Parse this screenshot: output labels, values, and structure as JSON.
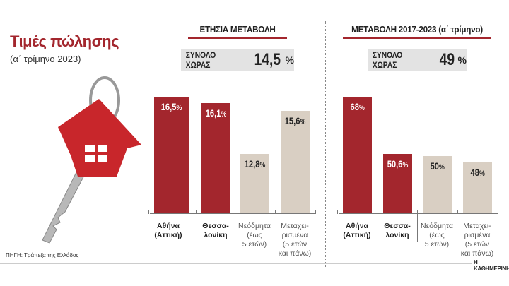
{
  "title": "Τιμές πώλησης",
  "subtitle": "(α΄ τρίμηνο 2023)",
  "source": "ΠΗΓΗ: Τράπεζα της Ελλάδος",
  "brand": "Η ΚΑΘΗΜΕΡΙΝΗ",
  "colors": {
    "dark": "#a3262d",
    "light": "#d9cfc3"
  },
  "chart_data": [
    {
      "type": "bar",
      "title": "ΕΤΗΣΙΑ ΜΕΤΑΒΟΛΗ",
      "total_label": "ΣΥΝΟΛΟ ΧΩΡΑΣ",
      "total_value": "14,5",
      "total_unit": "%",
      "categories": [
        "Αθήνα (Αττική)",
        "Θεσσα-λονίκη",
        "Νεόδμητα (έως 5 ετών)",
        "Μεταχει-ρισμένα (5 ετών και πάνω)"
      ],
      "values": [
        16.5,
        16.1,
        12.8,
        15.6
      ],
      "labels": [
        "16,5",
        "16,1",
        "12,8",
        "15,6"
      ],
      "unit": "%",
      "ylim": [
        9,
        17.5
      ]
    },
    {
      "type": "bar",
      "title": "ΜΕΤΑΒΟΛΗ 2017-2023 (α΄ τρίμηνο)",
      "total_label": "ΣΥΝΟΛΟ ΧΩΡΑΣ",
      "total_value": "49",
      "total_unit": "%",
      "categories": [
        "Αθήνα (Αττική)",
        "Θεσσα-λονίκη",
        "Νεόδμητα (έως 5 ετών)",
        "Μεταχει-ρισμένα (5 ετών και πάνω)"
      ],
      "values": [
        68,
        50.6,
        50,
        48
      ],
      "labels": [
        "68",
        "50,6",
        "50",
        "48"
      ],
      "unit": "%",
      "ylim": [
        32.6,
        70
      ]
    }
  ],
  "category_lines": [
    [
      "Αθήνα",
      "(Αττική)"
    ],
    [
      "Θεσσα-",
      "λονίκη"
    ],
    [
      "Νεόδμητα",
      "(έως",
      "5 ετών)"
    ],
    [
      "Μεταχει-",
      "ρισμένα",
      "(5 ετών",
      "και πάνω)"
    ]
  ]
}
